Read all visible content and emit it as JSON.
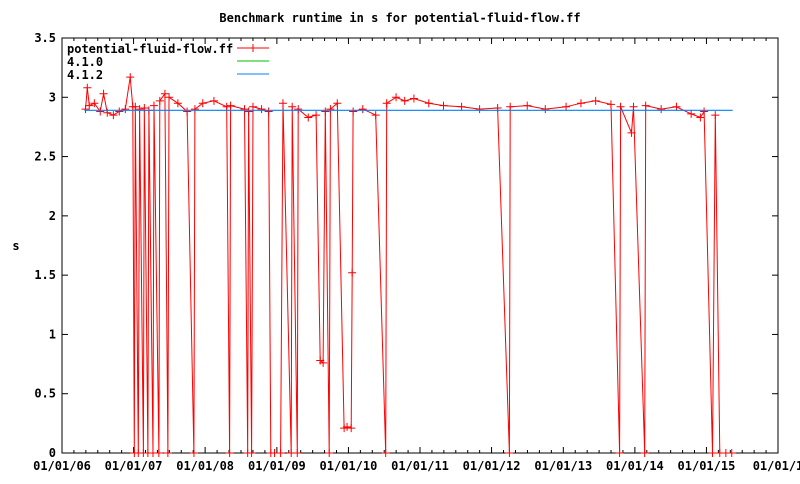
{
  "chart_data": {
    "type": "line",
    "title": "Benchmark runtime in s for potential-fluid-flow.ff",
    "xlabel": "",
    "ylabel": "s",
    "xlim": [
      "2006-01-01",
      "2016-01-01"
    ],
    "ylim": [
      0,
      3.5
    ],
    "grid": false,
    "legend_position": "top-left",
    "x_tick_labels": [
      "01/01/06",
      "01/01/07",
      "01/01/08",
      "01/01/09",
      "01/01/10",
      "01/01/11",
      "01/01/12",
      "01/01/13",
      "01/01/14",
      "01/01/15",
      "01/01/1"
    ],
    "x_tick_dates": [
      "2006-01-01",
      "2007-01-01",
      "2008-01-01",
      "2009-01-01",
      "2010-01-01",
      "2011-01-01",
      "2012-01-01",
      "2013-01-01",
      "2014-01-01",
      "2015-01-01",
      "2016-01-01"
    ],
    "y_ticks": [
      0,
      0.5,
      1,
      1.5,
      2,
      2.5,
      3,
      3.5
    ],
    "y_tick_labels": [
      "0",
      "0.5",
      "1",
      "1.5",
      "2",
      "2.5",
      "3",
      "3.5"
    ],
    "series": [
      {
        "name": "potential-fluid-flow.ff",
        "color": "#ff0000",
        "marker": "plus",
        "points": [
          [
            "2006-05-01",
            2.9
          ],
          [
            "2006-05-10",
            3.08
          ],
          [
            "2006-05-20",
            2.93
          ],
          [
            "2006-06-15",
            2.95
          ],
          [
            "2006-07-15",
            2.88
          ],
          [
            "2006-08-01",
            3.03
          ],
          [
            "2006-08-20",
            2.87
          ],
          [
            "2006-09-20",
            2.85
          ],
          [
            "2006-10-20",
            2.88
          ],
          [
            "2006-11-20",
            2.9
          ],
          [
            "2006-12-15",
            3.17
          ],
          [
            "2006-12-28",
            2.92
          ],
          [
            "2007-01-05",
            0
          ],
          [
            "2007-01-10",
            2.92
          ],
          [
            "2007-01-25",
            0
          ],
          [
            "2007-02-01",
            2.9
          ],
          [
            "2007-02-20",
            0
          ],
          [
            "2007-02-25",
            2.91
          ],
          [
            "2007-03-15",
            0
          ],
          [
            "2007-03-20",
            2.89
          ],
          [
            "2007-04-10",
            0
          ],
          [
            "2007-04-15",
            2.93
          ],
          [
            "2007-05-10",
            0
          ],
          [
            "2007-05-15",
            2.97
          ],
          [
            "2007-06-10",
            3.03
          ],
          [
            "2007-06-25",
            0
          ],
          [
            "2007-07-01",
            3.0
          ],
          [
            "2007-08-15",
            2.95
          ],
          [
            "2007-10-01",
            2.88
          ],
          [
            "2007-11-05",
            0
          ],
          [
            "2007-11-10",
            2.9
          ],
          [
            "2007-12-20",
            2.95
          ],
          [
            "2008-02-15",
            2.97
          ],
          [
            "2008-04-20",
            2.92
          ],
          [
            "2008-05-05",
            0
          ],
          [
            "2008-05-10",
            2.93
          ],
          [
            "2008-07-20",
            2.9
          ],
          [
            "2008-08-05",
            0
          ],
          [
            "2008-08-10",
            2.88
          ],
          [
            "2008-08-25",
            0
          ],
          [
            "2008-09-01",
            2.92
          ],
          [
            "2008-10-15",
            2.9
          ],
          [
            "2008-11-20",
            2.88
          ],
          [
            "2008-12-01",
            0
          ],
          [
            "2008-12-20",
            0
          ],
          [
            "2009-01-20",
            0
          ],
          [
            "2009-02-01",
            2.95
          ],
          [
            "2009-03-15",
            0
          ],
          [
            "2009-03-20",
            2.92
          ],
          [
            "2009-04-15",
            0
          ],
          [
            "2009-04-20",
            2.9
          ],
          [
            "2009-06-10",
            2.83
          ],
          [
            "2009-07-20",
            2.85
          ],
          [
            "2009-08-10",
            0.78
          ],
          [
            "2009-08-25",
            0.76
          ],
          [
            "2009-09-05",
            2.88
          ],
          [
            "2009-09-25",
            0
          ],
          [
            "2009-10-01",
            2.9
          ],
          [
            "2009-11-05",
            2.95
          ],
          [
            "2009-12-10",
            0.21
          ],
          [
            "2009-12-25",
            0.22
          ],
          [
            "2010-01-15",
            0.21
          ],
          [
            "2010-01-20",
            1.52
          ],
          [
            "2010-01-25",
            2.88
          ],
          [
            "2010-03-15",
            2.9
          ],
          [
            "2010-05-20",
            2.85
          ],
          [
            "2010-07-10",
            0
          ],
          [
            "2010-07-15",
            2.95
          ],
          [
            "2010-09-01",
            3.0
          ],
          [
            "2010-10-15",
            2.97
          ],
          [
            "2010-12-01",
            2.99
          ],
          [
            "2011-02-15",
            2.95
          ],
          [
            "2011-05-01",
            2.93
          ],
          [
            "2011-08-01",
            2.92
          ],
          [
            "2011-11-01",
            2.9
          ],
          [
            "2012-02-01",
            2.91
          ],
          [
            "2012-04-01",
            0
          ],
          [
            "2012-04-05",
            2.92
          ],
          [
            "2012-07-01",
            2.93
          ],
          [
            "2012-10-01",
            2.9
          ],
          [
            "2013-01-15",
            2.92
          ],
          [
            "2013-04-01",
            2.95
          ],
          [
            "2013-06-15",
            2.97
          ],
          [
            "2013-09-01",
            2.94
          ],
          [
            "2013-10-15",
            0
          ],
          [
            "2013-10-20",
            2.92
          ],
          [
            "2013-12-15",
            2.7
          ],
          [
            "2013-12-25",
            2.92
          ],
          [
            "2014-02-20",
            0
          ],
          [
            "2014-02-25",
            2.93
          ],
          [
            "2014-05-15",
            2.9
          ],
          [
            "2014-08-01",
            2.92
          ],
          [
            "2014-10-15",
            2.86
          ],
          [
            "2014-12-01",
            2.83
          ],
          [
            "2014-12-20",
            2.88
          ],
          [
            "2015-02-01",
            0
          ],
          [
            "2015-02-15",
            2.85
          ],
          [
            "2015-03-10",
            0
          ],
          [
            "2015-04-10",
            0
          ],
          [
            "2015-05-10",
            0
          ]
        ]
      },
      {
        "name": "4.1.0",
        "color": "#00c000",
        "points": []
      },
      {
        "name": "4.1.2",
        "color": "#0080ff",
        "points": [
          [
            "2006-04-25",
            2.89
          ],
          [
            "2015-05-15",
            2.89
          ]
        ]
      }
    ]
  }
}
